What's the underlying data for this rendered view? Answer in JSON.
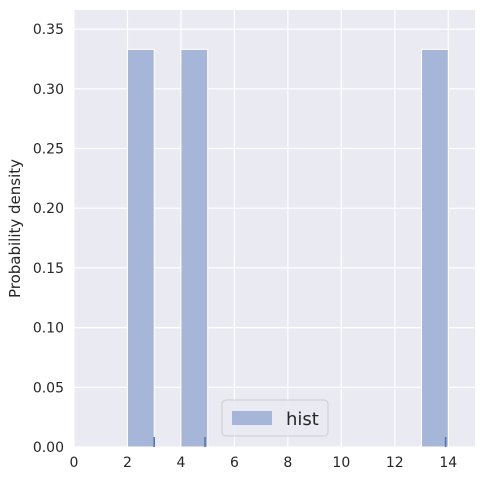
{
  "chart_data": {
    "type": "bar",
    "xlabel": "",
    "ylabel": "Probability density",
    "xlim": [
      0,
      15
    ],
    "ylim": [
      0,
      0.366
    ],
    "xticks": [
      "0",
      "2",
      "4",
      "6",
      "8",
      "10",
      "12",
      "14"
    ],
    "yticks": [
      "0.00",
      "0.05",
      "0.10",
      "0.15",
      "0.20",
      "0.25",
      "0.30",
      "0.35"
    ],
    "grid": true,
    "legend": {
      "position": "lower-center",
      "entries": [
        {
          "name": "hist",
          "color": "#a6b6d8"
        }
      ]
    },
    "series": [
      {
        "name": "hist",
        "bins": [
          {
            "x0": 2.0,
            "x1": 3.0,
            "density": 0.333
          },
          {
            "x0": 4.0,
            "x1": 5.0,
            "density": 0.333
          },
          {
            "x0": 13.0,
            "x1": 14.0,
            "density": 0.333
          }
        ]
      }
    ],
    "rug": {
      "values": [
        3.0,
        4.9,
        13.9
      ],
      "color": "#4c72b0"
    }
  },
  "colors": {
    "plot_background": "#eaeaf2",
    "grid": "#ffffff",
    "bar_fill": "#a6b6d8",
    "bar_edge": "#ffffff",
    "rug": "#4c72b0",
    "text": "#262626"
  }
}
